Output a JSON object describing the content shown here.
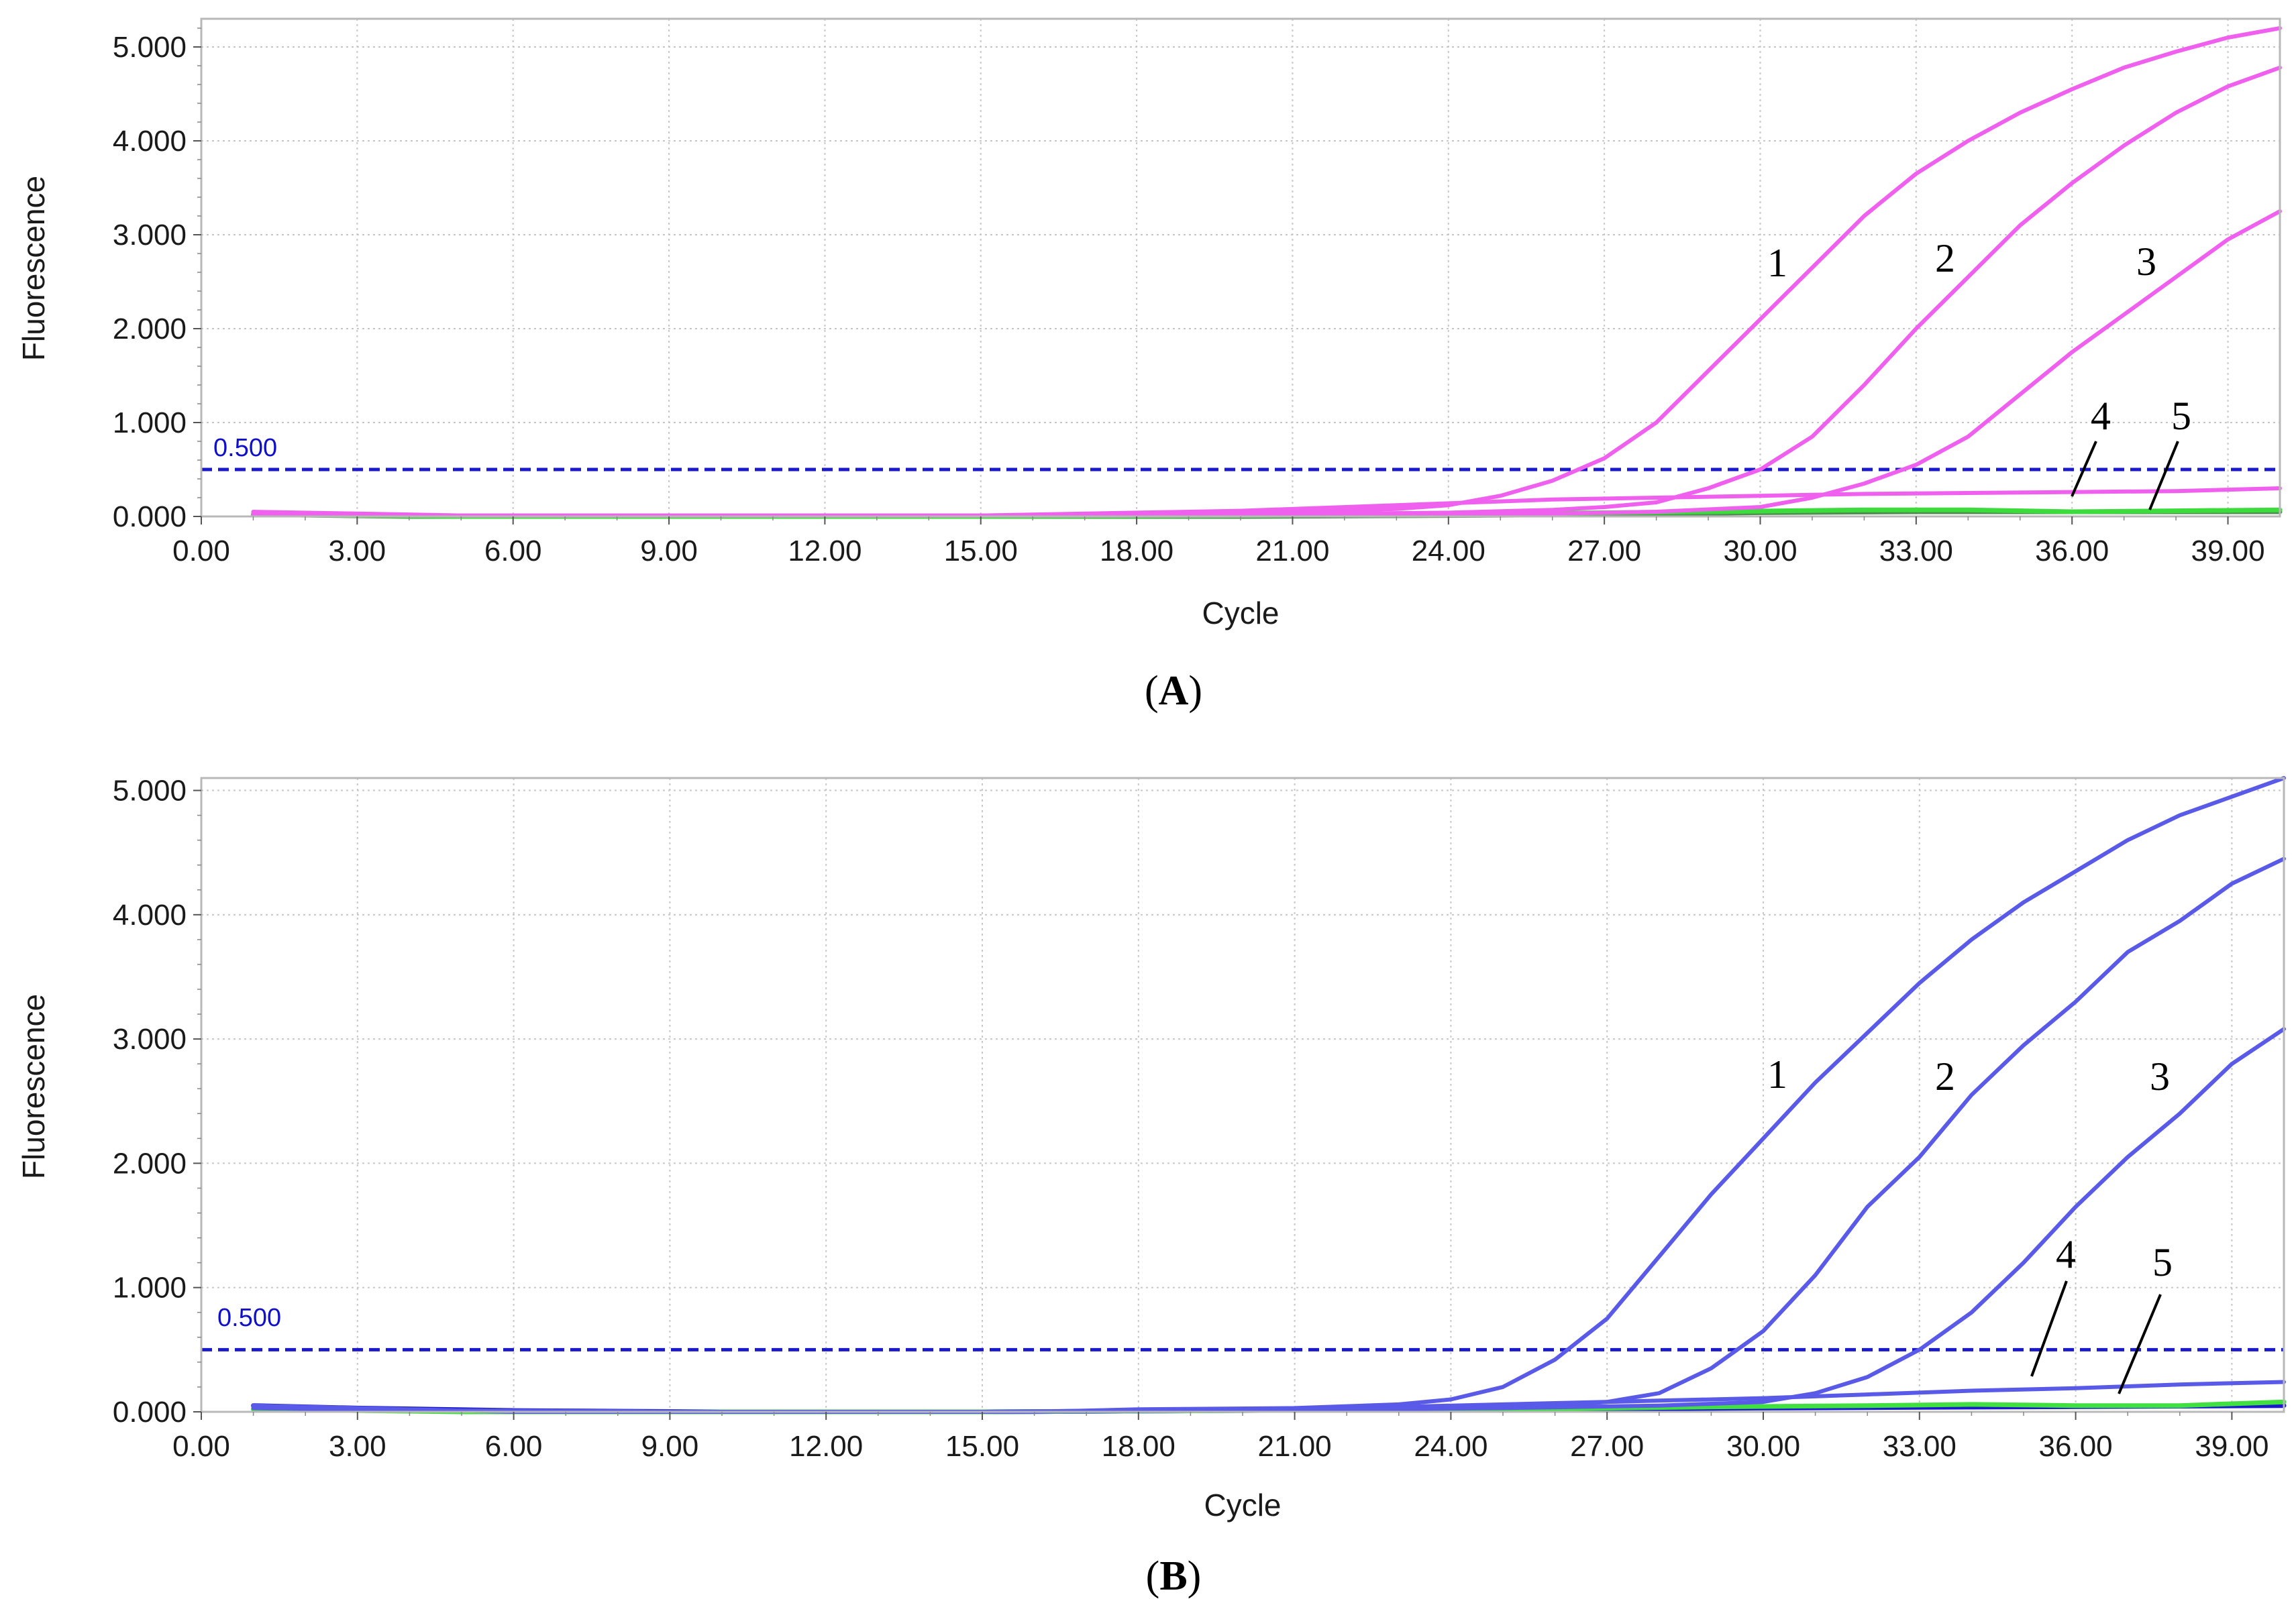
{
  "figure": {
    "panels": [
      {
        "id": "A",
        "caption_open": "(",
        "caption_letter": "A",
        "caption_close": ")"
      },
      {
        "id": "B",
        "caption_open": "(",
        "caption_letter": "B",
        "caption_close": ")"
      }
    ]
  },
  "chart_data": [
    {
      "type": "line",
      "panel": "A",
      "xlabel": "Cycle",
      "ylabel": "Fluorescence",
      "xlim": [
        0,
        40
      ],
      "ylim": [
        0,
        5.3
      ],
      "x_ticks": [
        0,
        3,
        6,
        9,
        12,
        15,
        18,
        21,
        24,
        27,
        30,
        33,
        36,
        39
      ],
      "x_tick_labels": [
        "0.00",
        "3.00",
        "6.00",
        "9.00",
        "12.00",
        "15.00",
        "18.00",
        "21.00",
        "24.00",
        "27.00",
        "30.00",
        "33.00",
        "36.00",
        "39.00"
      ],
      "y_ticks": [
        0,
        1,
        2,
        3,
        4,
        5
      ],
      "y_tick_labels": [
        "0.000",
        "1.000",
        "2.000",
        "3.000",
        "4.000",
        "5.000"
      ],
      "grid": true,
      "threshold": {
        "value": 0.5,
        "label": "0.500",
        "color": "#1a1acc"
      },
      "series": [
        {
          "name": "1",
          "color": "#f060ee",
          "points": [
            [
              1,
              0.05
            ],
            [
              3,
              0.03
            ],
            [
              5,
              0.01
            ],
            [
              10,
              0.01
            ],
            [
              15,
              0.01
            ],
            [
              18,
              0.02
            ],
            [
              21,
              0.05
            ],
            [
              23,
              0.08
            ],
            [
              24,
              0.12
            ],
            [
              25,
              0.22
            ],
            [
              26,
              0.38
            ],
            [
              27,
              0.62
            ],
            [
              28,
              1.0
            ],
            [
              29,
              1.55
            ],
            [
              30,
              2.1
            ],
            [
              31,
              2.65
            ],
            [
              32,
              3.2
            ],
            [
              33,
              3.65
            ],
            [
              34,
              4.0
            ],
            [
              35,
              4.3
            ],
            [
              36,
              4.55
            ],
            [
              37,
              4.78
            ],
            [
              38,
              4.95
            ],
            [
              39,
              5.1
            ],
            [
              40,
              5.2
            ]
          ]
        },
        {
          "name": "2",
          "color": "#f060ee",
          "points": [
            [
              1,
              0.03
            ],
            [
              5,
              0.01
            ],
            [
              10,
              0.01
            ],
            [
              15,
              0.01
            ],
            [
              20,
              0.02
            ],
            [
              24,
              0.04
            ],
            [
              26,
              0.07
            ],
            [
              27,
              0.1
            ],
            [
              28,
              0.15
            ],
            [
              29,
              0.3
            ],
            [
              30,
              0.5
            ],
            [
              31,
              0.85
            ],
            [
              32,
              1.4
            ],
            [
              33,
              2.0
            ],
            [
              34,
              2.55
            ],
            [
              35,
              3.1
            ],
            [
              36,
              3.55
            ],
            [
              37,
              3.95
            ],
            [
              38,
              4.3
            ],
            [
              39,
              4.58
            ],
            [
              40,
              4.78
            ]
          ]
        },
        {
          "name": "3",
          "color": "#f060ee",
          "points": [
            [
              1,
              0.02
            ],
            [
              5,
              0.01
            ],
            [
              10,
              0.01
            ],
            [
              15,
              0.01
            ],
            [
              20,
              0.01
            ],
            [
              25,
              0.02
            ],
            [
              28,
              0.05
            ],
            [
              30,
              0.1
            ],
            [
              31,
              0.2
            ],
            [
              32,
              0.35
            ],
            [
              33,
              0.55
            ],
            [
              34,
              0.85
            ],
            [
              35,
              1.3
            ],
            [
              36,
              1.75
            ],
            [
              37,
              2.15
            ],
            [
              38,
              2.55
            ],
            [
              39,
              2.95
            ],
            [
              40,
              3.25
            ]
          ]
        },
        {
          "name": "4",
          "color": "#f060ee",
          "points": [
            [
              1,
              0.02
            ],
            [
              5,
              0.01
            ],
            [
              10,
              0.01
            ],
            [
              15,
              0.01
            ],
            [
              20,
              0.06
            ],
            [
              23,
              0.12
            ],
            [
              26,
              0.18
            ],
            [
              28,
              0.2
            ],
            [
              30,
              0.22
            ],
            [
              32,
              0.24
            ],
            [
              34,
              0.25
            ],
            [
              36,
              0.26
            ],
            [
              38,
              0.27
            ],
            [
              40,
              0.3
            ]
          ]
        },
        {
          "name": "5",
          "color": "#3cdc3c",
          "points": [
            [
              1,
              0.02
            ],
            [
              5,
              0.0
            ],
            [
              10,
              0.0
            ],
            [
              15,
              0.0
            ],
            [
              20,
              0.01
            ],
            [
              25,
              0.03
            ],
            [
              29,
              0.05
            ],
            [
              32,
              0.07
            ],
            [
              34,
              0.07
            ],
            [
              36,
              0.05
            ],
            [
              38,
              0.06
            ],
            [
              40,
              0.07
            ]
          ]
        },
        {
          "name": "",
          "color": "#4f8c4f",
          "points": [
            [
              1,
              0.02
            ],
            [
              4,
              0.0
            ],
            [
              8,
              0.0
            ],
            [
              12,
              0.0
            ],
            [
              16,
              0.0
            ],
            [
              20,
              0.0
            ],
            [
              24,
              0.01
            ],
            [
              27,
              0.02
            ],
            [
              30,
              0.04
            ],
            [
              33,
              0.05
            ],
            [
              36,
              0.05
            ],
            [
              40,
              0.05
            ]
          ]
        }
      ],
      "annotations": [
        "1",
        "2",
        "3",
        "4",
        "5"
      ]
    },
    {
      "type": "line",
      "panel": "B",
      "xlabel": "Cycle",
      "ylabel": "Fluorescence",
      "xlim": [
        0,
        40
      ],
      "ylim": [
        0,
        5.1
      ],
      "x_ticks": [
        0,
        3,
        6,
        9,
        12,
        15,
        18,
        21,
        24,
        27,
        30,
        33,
        36,
        39
      ],
      "x_tick_labels": [
        "0.00",
        "3.00",
        "6.00",
        "9.00",
        "12.00",
        "15.00",
        "18.00",
        "21.00",
        "24.00",
        "27.00",
        "30.00",
        "33.00",
        "36.00",
        "39.00"
      ],
      "y_ticks": [
        0,
        1,
        2,
        3,
        4,
        5
      ],
      "y_tick_labels": [
        "0.000",
        "1.000",
        "2.000",
        "3.000",
        "4.000",
        "5.000"
      ],
      "grid": true,
      "threshold": {
        "value": 0.5,
        "label": "0.500",
        "color": "#1a1acc"
      },
      "series": [
        {
          "name": "1",
          "color": "#5a5ae8",
          "points": [
            [
              1,
              0.05
            ],
            [
              3,
              0.03
            ],
            [
              6,
              0.0
            ],
            [
              10,
              0.0
            ],
            [
              16,
              0.0
            ],
            [
              18,
              0.02
            ],
            [
              21,
              0.03
            ],
            [
              23,
              0.06
            ],
            [
              24,
              0.1
            ],
            [
              25,
              0.2
            ],
            [
              26,
              0.42
            ],
            [
              27,
              0.75
            ],
            [
              28,
              1.25
            ],
            [
              29,
              1.75
            ],
            [
              30,
              2.2
            ],
            [
              31,
              2.65
            ],
            [
              32,
              3.05
            ],
            [
              33,
              3.45
            ],
            [
              34,
              3.8
            ],
            [
              35,
              4.1
            ],
            [
              36,
              4.35
            ],
            [
              37,
              4.6
            ],
            [
              38,
              4.8
            ],
            [
              39,
              4.95
            ],
            [
              40,
              5.1
            ]
          ]
        },
        {
          "name": "2",
          "color": "#5a5ae8",
          "points": [
            [
              1,
              0.04
            ],
            [
              5,
              0.01
            ],
            [
              10,
              0.0
            ],
            [
              15,
              0.0
            ],
            [
              20,
              0.01
            ],
            [
              24,
              0.03
            ],
            [
              26,
              0.05
            ],
            [
              27,
              0.08
            ],
            [
              28,
              0.15
            ],
            [
              29,
              0.35
            ],
            [
              30,
              0.65
            ],
            [
              31,
              1.1
            ],
            [
              32,
              1.65
            ],
            [
              33,
              2.05
            ],
            [
              34,
              2.55
            ],
            [
              35,
              2.95
            ],
            [
              36,
              3.3
            ],
            [
              37,
              3.7
            ],
            [
              38,
              3.95
            ],
            [
              39,
              4.25
            ],
            [
              40,
              4.45
            ]
          ]
        },
        {
          "name": "3",
          "color": "#5a5ae8",
          "points": [
            [
              1,
              0.03
            ],
            [
              5,
              0.01
            ],
            [
              10,
              0.0
            ],
            [
              15,
              0.0
            ],
            [
              20,
              0.01
            ],
            [
              25,
              0.03
            ],
            [
              28,
              0.05
            ],
            [
              30,
              0.08
            ],
            [
              31,
              0.15
            ],
            [
              32,
              0.28
            ],
            [
              33,
              0.5
            ],
            [
              34,
              0.8
            ],
            [
              35,
              1.2
            ],
            [
              36,
              1.65
            ],
            [
              37,
              2.05
            ],
            [
              38,
              2.4
            ],
            [
              39,
              2.8
            ],
            [
              40,
              3.08
            ]
          ]
        },
        {
          "name": "4",
          "color": "#5a5ae8",
          "points": [
            [
              1,
              0.03
            ],
            [
              5,
              0.01
            ],
            [
              10,
              0.0
            ],
            [
              15,
              0.0
            ],
            [
              20,
              0.02
            ],
            [
              23,
              0.04
            ],
            [
              26,
              0.07
            ],
            [
              28,
              0.09
            ],
            [
              30,
              0.11
            ],
            [
              32,
              0.14
            ],
            [
              34,
              0.17
            ],
            [
              36,
              0.19
            ],
            [
              38,
              0.22
            ],
            [
              40,
              0.24
            ]
          ]
        },
        {
          "name": "5",
          "color": "#40e040",
          "points": [
            [
              1,
              0.02
            ],
            [
              5,
              0.0
            ],
            [
              10,
              0.0
            ],
            [
              15,
              0.0
            ],
            [
              20,
              0.01
            ],
            [
              25,
              0.02
            ],
            [
              29,
              0.04
            ],
            [
              32,
              0.05
            ],
            [
              34,
              0.06
            ],
            [
              36,
              0.05
            ],
            [
              38,
              0.05
            ],
            [
              40,
              0.08
            ]
          ]
        },
        {
          "name": "",
          "color": "#1a1acc",
          "points": [
            [
              1,
              0.05
            ],
            [
              3,
              0.03
            ],
            [
              6,
              0.01
            ],
            [
              10,
              0.0
            ],
            [
              15,
              0.0
            ],
            [
              20,
              0.01
            ],
            [
              25,
              0.02
            ],
            [
              30,
              0.03
            ],
            [
              35,
              0.04
            ],
            [
              40,
              0.05
            ]
          ]
        }
      ],
      "annotations": [
        "1",
        "2",
        "3",
        "4",
        "5"
      ]
    }
  ]
}
